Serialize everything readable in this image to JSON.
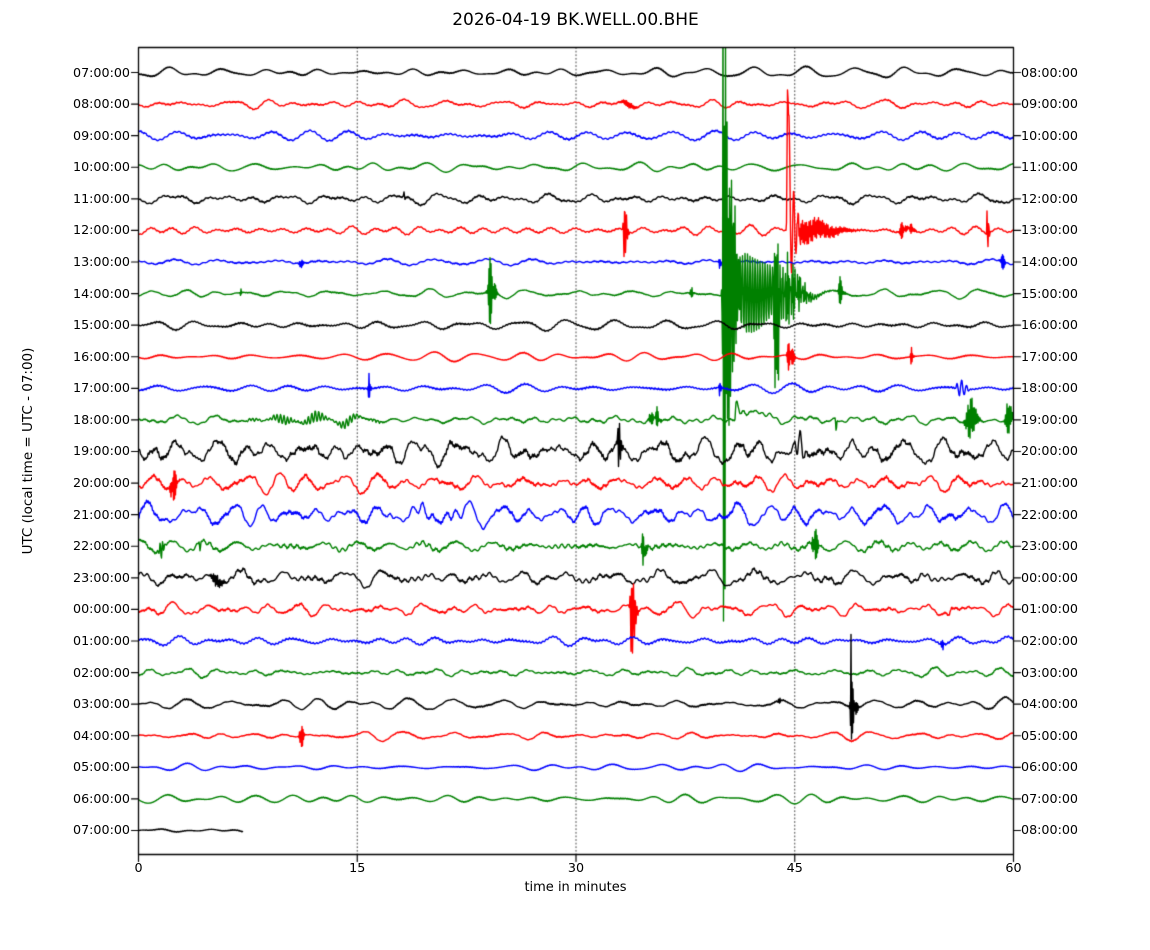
{
  "figure": {
    "title": "2026-04-19 BK.WELL.00.BHE",
    "y_axis_label": "UTC (local time = UTC - 07:00)",
    "x_axis_label": "time in minutes"
  },
  "chart_data": {
    "type": "line",
    "subtype": "seismogram-dayplot",
    "title": "2026-04-19 BK.WELL.00.BHE",
    "xlabel": "time in minutes",
    "ylabel": "UTC (local time = UTC - 07:00)",
    "x_range_minutes": [
      0,
      60
    ],
    "x_ticks": [
      "0",
      "15",
      "30",
      "45",
      "60"
    ],
    "x_tick_minutes": [
      0,
      15,
      30,
      45,
      60
    ],
    "gridlines_minutes": [
      15,
      30,
      45
    ],
    "grid_style": "dotted-vertical",
    "minutes_per_row": 60,
    "color_cycle": [
      "#000000",
      "#ff0000",
      "#0000ff",
      "#008000"
    ],
    "rows": [
      {
        "utc": "07:00:00",
        "local_end": "08:00:00",
        "color": "#000000",
        "noise": 3.0,
        "rough": 0.0,
        "end": 60,
        "events": []
      },
      {
        "utc": "08:00:00",
        "local_end": "09:00:00",
        "color": "#ff0000",
        "noise": 2.6,
        "rough": 0.1,
        "end": 60,
        "events": [
          {
            "type": "burst",
            "t": 33.5,
            "rise": 0.4,
            "decay": 0.6,
            "up": 3,
            "down": 3,
            "f": 20
          }
        ]
      },
      {
        "utc": "09:00:00",
        "local_end": "10:00:00",
        "color": "#0000ff",
        "noise": 3.2,
        "rough": 0.1,
        "end": 60,
        "events": []
      },
      {
        "utc": "10:00:00",
        "local_end": "11:00:00",
        "color": "#008000",
        "noise": 2.6,
        "rough": 0.0,
        "end": 60,
        "events": []
      },
      {
        "utc": "11:00:00",
        "local_end": "12:00:00",
        "color": "#000000",
        "noise": 3.4,
        "rough": 0.1,
        "end": 60,
        "events": [
          {
            "type": "burst",
            "t": 18.2,
            "rise": 0.04,
            "decay": 0.08,
            "up": 5,
            "down": 5,
            "f": 35
          }
        ]
      },
      {
        "utc": "12:00:00",
        "local_end": "13:00:00",
        "color": "#ff0000",
        "noise": 2.4,
        "rough": 0.1,
        "end": 60,
        "events": [
          {
            "type": "burst",
            "t": 33.3,
            "rise": 0.06,
            "decay": 0.2,
            "up": 32,
            "down": 30,
            "f": 50
          },
          {
            "type": "burst",
            "t": 44.5,
            "rise": 0.04,
            "decay": 0.12,
            "up": 150,
            "down": 113,
            "f": 30
          },
          {
            "type": "burst",
            "t": 44.62,
            "rise": 0.06,
            "decay": 0.55,
            "up": 55,
            "down": 48,
            "f": 55
          },
          {
            "type": "burst",
            "t": 45.6,
            "rise": 0.5,
            "decay": 2.2,
            "up": 12,
            "down": 12,
            "f": 40
          },
          {
            "type": "burst",
            "t": 52.35,
            "rise": 0.15,
            "decay": 0.3,
            "up": 8,
            "down": 8,
            "f": 45
          },
          {
            "type": "burst",
            "t": 53.0,
            "rise": 0.1,
            "decay": 0.2,
            "up": 6,
            "down": 6,
            "f": 45
          },
          {
            "type": "burst",
            "t": 58.2,
            "rise": 0.04,
            "decay": 0.12,
            "up": 27,
            "down": 18,
            "f": 50
          }
        ]
      },
      {
        "utc": "13:00:00",
        "local_end": "14:00:00",
        "color": "#0000ff",
        "noise": 2.6,
        "rough": 0.1,
        "end": 60,
        "events": [
          {
            "type": "burst",
            "t": 11.1,
            "rise": 0.07,
            "decay": 0.14,
            "up": 9,
            "down": 9,
            "f": 45
          },
          {
            "type": "burst",
            "t": 39.85,
            "rise": 0.05,
            "decay": 0.1,
            "up": 7,
            "down": 6,
            "f": 40
          },
          {
            "type": "burst",
            "t": 59.2,
            "rise": 0.12,
            "decay": 0.2,
            "up": 9,
            "down": 8,
            "f": 45
          }
        ]
      },
      {
        "utc": "14:00:00",
        "local_end": "15:00:00",
        "color": "#008000",
        "noise": 2.4,
        "rough": 0.1,
        "end": 60,
        "events": [
          {
            "type": "burst",
            "t": 7.0,
            "rise": 0.04,
            "decay": 0.08,
            "up": 4,
            "down": 4,
            "f": 40
          },
          {
            "type": "burst",
            "t": 24.1,
            "rise": 0.15,
            "decay": 0.3,
            "up": 33,
            "down": 34,
            "f": 45
          },
          {
            "type": "burst",
            "t": 37.9,
            "rise": 0.06,
            "decay": 0.12,
            "up": 7,
            "down": 7,
            "f": 40
          },
          {
            "type": "burst",
            "t": 40.1,
            "rise": 0.06,
            "decay": 0.3,
            "up": 400,
            "down": 358,
            "f": 40
          },
          {
            "type": "burst",
            "t": 40.6,
            "rise": 0.2,
            "decay": 0.5,
            "up": 120,
            "down": 100,
            "f": 50
          },
          {
            "type": "burst",
            "t": 41.5,
            "rise": 0.3,
            "decay": 2.8,
            "up": 42,
            "down": 40,
            "f": 35
          },
          {
            "type": "burst",
            "t": 43.65,
            "rise": 0.05,
            "decay": 0.22,
            "up": 95,
            "down": 245,
            "f": 45
          },
          {
            "type": "burst",
            "t": 44.3,
            "rise": 0.2,
            "decay": 1.2,
            "up": 30,
            "down": 28,
            "f": 45
          },
          {
            "type": "burst",
            "t": 48.1,
            "rise": 0.1,
            "decay": 0.22,
            "up": 14,
            "down": 13,
            "f": 45
          }
        ]
      },
      {
        "utc": "15:00:00",
        "local_end": "16:00:00",
        "color": "#000000",
        "noise": 3.0,
        "rough": 0.1,
        "end": 60,
        "events": []
      },
      {
        "utc": "16:00:00",
        "local_end": "17:00:00",
        "color": "#ff0000",
        "noise": 2.6,
        "rough": 0.0,
        "end": 60,
        "events": [
          {
            "type": "burst",
            "t": 44.6,
            "rise": 0.1,
            "decay": 0.3,
            "up": 16,
            "down": 18,
            "f": 45
          },
          {
            "type": "burst",
            "t": 53.0,
            "rise": 0.05,
            "decay": 0.12,
            "up": 13,
            "down": 11,
            "f": 45
          }
        ]
      },
      {
        "utc": "17:00:00",
        "local_end": "18:00:00",
        "color": "#0000ff",
        "noise": 3.2,
        "rough": 0.15,
        "end": 60,
        "events": [
          {
            "type": "burst",
            "t": 15.8,
            "rise": 0.04,
            "decay": 0.12,
            "up": 21,
            "down": 17,
            "f": 45
          },
          {
            "type": "burst",
            "t": 39.85,
            "rise": 0.05,
            "decay": 0.1,
            "up": 8,
            "down": 8,
            "f": 40
          },
          {
            "type": "burst",
            "t": 56.4,
            "rise": 0.3,
            "decay": 0.4,
            "up": 9,
            "down": 8,
            "f": 3
          }
        ]
      },
      {
        "utc": "18:00:00",
        "local_end": "19:00:00",
        "color": "#008000",
        "noise": 3.0,
        "rough": 0.2,
        "end": 60,
        "events": [
          {
            "type": "tremor",
            "t0": 7.3,
            "t1": 16.8,
            "amp": 5.5,
            "f": 4.2
          },
          {
            "type": "burst",
            "t": 35.1,
            "rise": 0.07,
            "decay": 0.15,
            "up": 15,
            "down": 14,
            "f": 45
          },
          {
            "type": "burst",
            "t": 35.55,
            "rise": 0.07,
            "decay": 0.2,
            "up": 11,
            "down": 10,
            "f": 45
          },
          {
            "type": "decay",
            "t": 40.9,
            "amp": 17,
            "tau": 1.3
          },
          {
            "type": "burst",
            "t": 47.8,
            "rise": 0.04,
            "decay": 0.1,
            "up": 2,
            "down": 13,
            "f": 25
          },
          {
            "type": "burst",
            "t": 57.0,
            "rise": 0.25,
            "decay": 0.45,
            "up": 22,
            "down": 20,
            "f": 40
          },
          {
            "type": "burst",
            "t": 59.6,
            "rise": 0.15,
            "decay": 0.3,
            "up": 18,
            "down": 16,
            "f": 40
          }
        ]
      },
      {
        "utc": "19:00:00",
        "local_end": "20:00:00",
        "color": "#000000",
        "noise": 8.0,
        "rough": 0.35,
        "end": 60,
        "events": [
          {
            "type": "burst",
            "t": 32.9,
            "rise": 0.06,
            "decay": 0.2,
            "up": 24,
            "down": 27,
            "f": 50
          },
          {
            "type": "burst",
            "t": 45.3,
            "rise": 0.25,
            "decay": 0.45,
            "up": 13,
            "down": 15,
            "f": 2.2
          }
        ]
      },
      {
        "utc": "20:00:00",
        "local_end": "21:00:00",
        "color": "#ff0000",
        "noise": 6.0,
        "rough": 0.3,
        "end": 60,
        "events": [
          {
            "type": "burst",
            "t": 2.3,
            "rise": 0.1,
            "decay": 0.28,
            "up": 20,
            "down": 25,
            "f": 45
          }
        ]
      },
      {
        "utc": "21:00:00",
        "local_end": "22:00:00",
        "color": "#0000ff",
        "noise": 7.0,
        "rough": 0.3,
        "end": 60,
        "events": [
          {
            "type": "tremor",
            "t0": 17.0,
            "t1": 23.5,
            "amp": 7,
            "f": 1.3
          }
        ]
      },
      {
        "utc": "22:00:00",
        "local_end": "23:00:00",
        "color": "#008000",
        "noise": 5.0,
        "rough": 0.45,
        "end": 60,
        "events": [
          {
            "type": "burst",
            "t": 1.5,
            "rise": 0.1,
            "decay": 0.25,
            "up": 9,
            "down": 9,
            "f": 35
          },
          {
            "type": "burst",
            "t": 4.2,
            "rise": 0.06,
            "decay": 0.12,
            "up": 6,
            "down": 6,
            "f": 35
          },
          {
            "type": "burst",
            "t": 34.6,
            "rise": 0.07,
            "decay": 0.2,
            "up": 17,
            "down": 25,
            "f": 45
          },
          {
            "type": "burst",
            "t": 46.3,
            "rise": 0.09,
            "decay": 0.25,
            "up": 20,
            "down": 27,
            "f": 45
          }
        ]
      },
      {
        "utc": "23:00:00",
        "local_end": "00:00:00",
        "color": "#000000",
        "noise": 5.0,
        "rough": 0.35,
        "end": 60,
        "events": [
          {
            "type": "burst",
            "t": 5.3,
            "rise": 0.3,
            "decay": 0.5,
            "up": 6,
            "down": 6,
            "f": 18
          }
        ]
      },
      {
        "utc": "00:00:00",
        "local_end": "01:00:00",
        "color": "#ff0000",
        "noise": 4.0,
        "rough": 0.25,
        "end": 60,
        "events": [
          {
            "type": "burst",
            "t": 33.8,
            "rise": 0.09,
            "decay": 0.28,
            "up": 34,
            "down": 52,
            "f": 50
          },
          {
            "type": "burst",
            "t": 55.7,
            "rise": 0.3,
            "decay": 0.06,
            "up": 8,
            "down": 8,
            "f": 28
          }
        ]
      },
      {
        "utc": "01:00:00",
        "local_end": "02:00:00",
        "color": "#0000ff",
        "noise": 3.0,
        "rough": 0.15,
        "end": 60,
        "events": [
          {
            "type": "burst",
            "t": 55.1,
            "rise": 0.06,
            "decay": 0.12,
            "up": 7,
            "down": 7,
            "f": 40
          }
        ]
      },
      {
        "utc": "02:00:00",
        "local_end": "03:00:00",
        "color": "#008000",
        "noise": 2.6,
        "rough": 0.1,
        "end": 60,
        "events": []
      },
      {
        "utc": "03:00:00",
        "local_end": "04:00:00",
        "color": "#000000",
        "noise": 3.2,
        "rough": 0.15,
        "end": 60,
        "events": [
          {
            "type": "burst",
            "t": 43.9,
            "rise": 0.05,
            "decay": 0.1,
            "up": 8,
            "down": 8,
            "f": 45
          },
          {
            "type": "burst",
            "t": 48.85,
            "rise": 0.03,
            "decay": 0.06,
            "up": 58,
            "down": 16,
            "f": 10
          },
          {
            "type": "burst",
            "t": 48.9,
            "rise": 0.1,
            "decay": 0.28,
            "up": 28,
            "down": 30,
            "f": 45
          }
        ]
      },
      {
        "utc": "04:00:00",
        "local_end": "05:00:00",
        "color": "#ff0000",
        "noise": 2.6,
        "rough": 0.1,
        "end": 60,
        "events": [
          {
            "type": "burst",
            "t": 11.1,
            "rise": 0.06,
            "decay": 0.16,
            "up": 21,
            "down": 27,
            "f": 45
          }
        ]
      },
      {
        "utc": "05:00:00",
        "local_end": "06:00:00",
        "color": "#0000ff",
        "noise": 2.0,
        "rough": 0.05,
        "end": 60,
        "events": []
      },
      {
        "utc": "06:00:00",
        "local_end": "07:00:00",
        "color": "#008000",
        "noise": 2.6,
        "rough": 0.05,
        "end": 60,
        "events": []
      },
      {
        "utc": "07:00:00",
        "local_end": "08:00:00",
        "color": "#000000",
        "noise": 2.0,
        "rough": 0.05,
        "end": 7.15,
        "events": []
      }
    ]
  }
}
